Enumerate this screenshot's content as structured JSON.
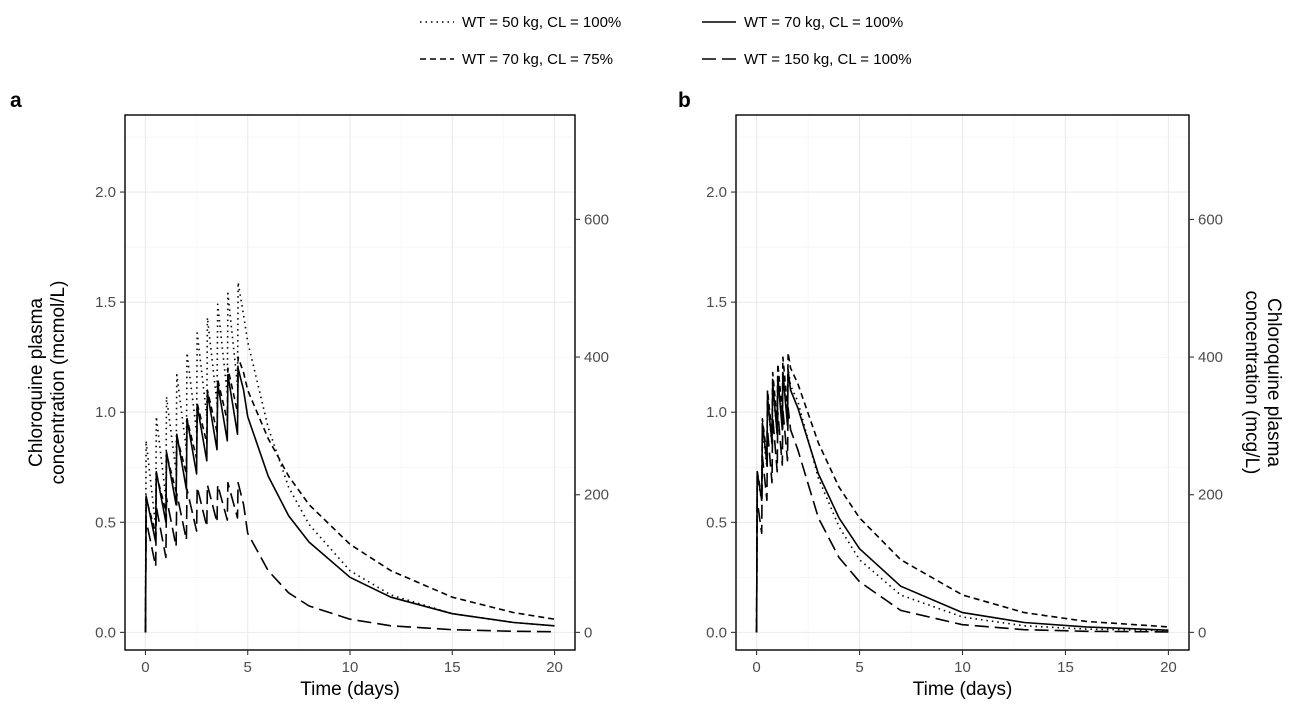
{
  "legend": {
    "entries": [
      {
        "label": "WT = 50 kg, CL = 100%",
        "style": "dotted"
      },
      {
        "label": "WT = 70 kg, CL = 100%",
        "style": "solid"
      },
      {
        "label": "WT = 70 kg, CL = 75%",
        "style": "dashed"
      },
      {
        "label": "WT = 150 kg, CL = 100%",
        "style": "longdash"
      }
    ]
  },
  "chart_data": [
    {
      "type": "line",
      "panel_label": "a",
      "xlabel": "Time (days)",
      "ylabel_left": [
        "Chloroquine plasma",
        "concentration (mcmol/L)"
      ],
      "ylabel_right": "",
      "xlim": [
        -1,
        21
      ],
      "ylim": [
        -0.08,
        2.35
      ],
      "x_ticks": [
        0,
        5,
        10,
        15,
        20
      ],
      "y_ticks": [
        0.0,
        0.5,
        1.0,
        1.5,
        2.0
      ],
      "y2_ticks": [
        0,
        200,
        400,
        600
      ],
      "y2_per_y1": 319.87,
      "grid": true,
      "dosing": {
        "interval_days": 0.5,
        "doses": 10
      },
      "series": [
        {
          "name": "WT = 50 kg, CL = 100%",
          "style": "dotted",
          "peaks": [
            0.87,
            0.98,
            1.07,
            1.17,
            1.27,
            1.36,
            1.43,
            1.49,
            1.54,
            1.59
          ],
          "troughs": [
            0.48,
            0.61,
            0.73,
            0.83,
            0.91,
            0.98,
            1.04,
            1.08,
            1.12
          ],
          "end_of_dosing": 1.44,
          "decay": [
            [
              5,
              1.32
            ],
            [
              6,
              0.93
            ],
            [
              7,
              0.66
            ],
            [
              8,
              0.49
            ],
            [
              10,
              0.28
            ],
            [
              12,
              0.17
            ],
            [
              15,
              0.085
            ],
            [
              18,
              0.045
            ],
            [
              20,
              0.03
            ]
          ]
        },
        {
          "name": "WT = 70 kg, CL = 100%",
          "style": "solid",
          "peaks": [
            0.62,
            0.73,
            0.82,
            0.9,
            0.97,
            1.03,
            1.09,
            1.13,
            1.17,
            1.2
          ],
          "troughs": [
            0.41,
            0.5,
            0.58,
            0.65,
            0.72,
            0.78,
            0.83,
            0.87,
            0.9
          ],
          "end_of_dosing": 1.1,
          "decay": [
            [
              5,
              0.98
            ],
            [
              6,
              0.71
            ],
            [
              7,
              0.53
            ],
            [
              8,
              0.41
            ],
            [
              10,
              0.25
            ],
            [
              12,
              0.16
            ],
            [
              15,
              0.085
            ],
            [
              18,
              0.045
            ],
            [
              20,
              0.03
            ]
          ]
        },
        {
          "name": "WT = 70 kg, CL = 75%",
          "style": "dashed",
          "peaks": [
            0.61,
            0.72,
            0.81,
            0.89,
            0.97,
            1.04,
            1.1,
            1.15,
            1.2,
            1.25
          ],
          "troughs": [
            0.45,
            0.55,
            0.64,
            0.72,
            0.79,
            0.86,
            0.91,
            0.96,
            1.0
          ],
          "end_of_dosing": 1.18,
          "decay": [
            [
              5,
              1.1
            ],
            [
              6,
              0.88
            ],
            [
              7,
              0.71
            ],
            [
              8,
              0.58
            ],
            [
              10,
              0.4
            ],
            [
              12,
              0.28
            ],
            [
              15,
              0.16
            ],
            [
              18,
              0.09
            ],
            [
              20,
              0.06
            ]
          ]
        },
        {
          "name": "WT = 150 kg, CL = 100%",
          "style": "longdash",
          "peaks": [
            0.51,
            0.57,
            0.61,
            0.63,
            0.65,
            0.66,
            0.67,
            0.67,
            0.68,
            0.68
          ],
          "troughs": [
            0.3,
            0.34,
            0.39,
            0.42,
            0.46,
            0.48,
            0.5,
            0.51,
            0.52
          ],
          "end_of_dosing": 0.58,
          "decay": [
            [
              5,
              0.45
            ],
            [
              6,
              0.28
            ],
            [
              7,
              0.18
            ],
            [
              8,
              0.12
            ],
            [
              10,
              0.06
            ],
            [
              12,
              0.03
            ],
            [
              15,
              0.012
            ],
            [
              18,
              0.005
            ],
            [
              20,
              0.003
            ]
          ]
        }
      ]
    },
    {
      "type": "line",
      "panel_label": "b",
      "xlabel": "Time (days)",
      "ylabel_left": [],
      "ylabel_right": [
        "Chloroquine plasma",
        "concentration (mcg/L)"
      ],
      "xlim": [
        -1,
        21
      ],
      "ylim": [
        -0.08,
        2.35
      ],
      "x_ticks": [
        0,
        5,
        10,
        15,
        20
      ],
      "y_ticks": [
        0.0,
        0.5,
        1.0,
        1.5,
        2.0
      ],
      "y2_ticks": [
        0,
        200,
        400,
        600
      ],
      "y2_per_y1": 319.87,
      "grid": true,
      "dosing": {
        "interval_days": 0.25,
        "doses": 7
      },
      "series": [
        {
          "name": "WT = 50 kg, CL = 100%",
          "style": "dotted",
          "peaks": [
            0.7,
            0.92,
            1.05,
            1.12,
            1.16,
            1.18,
            1.2
          ],
          "troughs": [
            0.6,
            0.75,
            0.85,
            0.9,
            0.93,
            0.95
          ],
          "end_of_dosing": 1.12,
          "decay": [
            [
              2,
              1.05
            ],
            [
              3,
              0.7
            ],
            [
              4,
              0.48
            ],
            [
              5,
              0.33
            ],
            [
              7,
              0.17
            ],
            [
              10,
              0.07
            ],
            [
              13,
              0.03
            ],
            [
              16,
              0.015
            ],
            [
              20,
              0.008
            ]
          ]
        },
        {
          "name": "WT = 70 kg, CL = 100%",
          "style": "solid",
          "peaks": [
            0.73,
            0.95,
            1.07,
            1.13,
            1.16,
            1.18,
            1.19
          ],
          "troughs": [
            0.6,
            0.77,
            0.86,
            0.9,
            0.92,
            0.94
          ],
          "end_of_dosing": 1.1,
          "decay": [
            [
              2,
              1.02
            ],
            [
              3,
              0.72
            ],
            [
              4,
              0.52
            ],
            [
              5,
              0.38
            ],
            [
              7,
              0.21
            ],
            [
              10,
              0.09
            ],
            [
              13,
              0.045
            ],
            [
              16,
              0.025
            ],
            [
              20,
              0.01
            ]
          ]
        },
        {
          "name": "WT = 70 kg, CL = 75%",
          "style": "dashed",
          "peaks": [
            0.73,
            0.97,
            1.1,
            1.18,
            1.22,
            1.25,
            1.27
          ],
          "troughs": [
            0.62,
            0.8,
            0.9,
            0.96,
            1.0,
            1.02
          ],
          "end_of_dosing": 1.2,
          "decay": [
            [
              2,
              1.13
            ],
            [
              3,
              0.86
            ],
            [
              4,
              0.66
            ],
            [
              5,
              0.52
            ],
            [
              7,
              0.33
            ],
            [
              10,
              0.17
            ],
            [
              13,
              0.09
            ],
            [
              16,
              0.05
            ],
            [
              20,
              0.025
            ]
          ]
        },
        {
          "name": "WT = 150 kg, CL = 100%",
          "style": "longdash",
          "peaks": [
            0.6,
            0.8,
            0.92,
            0.98,
            1.0,
            1.01,
            1.02
          ],
          "troughs": [
            0.45,
            0.6,
            0.68,
            0.73,
            0.76,
            0.78
          ],
          "end_of_dosing": 0.92,
          "decay": [
            [
              2,
              0.83
            ],
            [
              3,
              0.52
            ],
            [
              4,
              0.34
            ],
            [
              5,
              0.23
            ],
            [
              7,
              0.1
            ],
            [
              10,
              0.035
            ],
            [
              13,
              0.012
            ],
            [
              16,
              0.005
            ],
            [
              20,
              0.002
            ]
          ]
        }
      ]
    }
  ]
}
